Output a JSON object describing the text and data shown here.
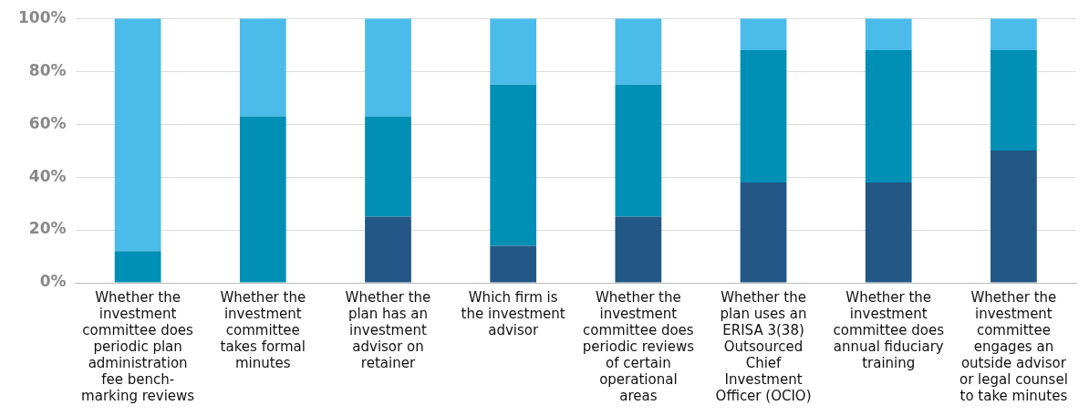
{
  "chart_data": {
    "type": "bar",
    "stacked": true,
    "categories": [
      "Whether the investment committee does periodic plan administration fee bench-marking reviews",
      "Whether the investment committee takes formal minutes",
      "Whether the plan has an investment advisor on retainer",
      "Which firm is the investment advisor",
      "Whether the investment committee does periodic reviews of certain operational areas",
      "Whether the plan uses an ERISA 3(38) Outsourced Chief Investment Officer (OCIO)",
      "Whether the investment committee does annual fiduciary training",
      "Whether the investment committee engages an outside advisor or legal counsel to take minutes"
    ],
    "series": [
      {
        "color": "#235886",
        "values": [
          0,
          0,
          25,
          14,
          25,
          38,
          38,
          50
        ]
      },
      {
        "color": "#0090b5",
        "values": [
          12,
          63,
          38,
          61,
          50,
          50,
          50,
          38
        ]
      },
      {
        "color": "#4bbbea",
        "values": [
          88,
          37,
          37,
          25,
          25,
          12,
          12,
          12
        ]
      }
    ],
    "ylim": [
      0,
      100
    ],
    "yticks": [
      {
        "value": 0,
        "label": "0%"
      },
      {
        "value": 20,
        "label": "20%"
      },
      {
        "value": 40,
        "label": "40%"
      },
      {
        "value": 60,
        "label": "60%"
      },
      {
        "value": 80,
        "label": "80%"
      },
      {
        "value": 100,
        "label": "100%"
      }
    ],
    "grid": "y",
    "legend": false
  }
}
